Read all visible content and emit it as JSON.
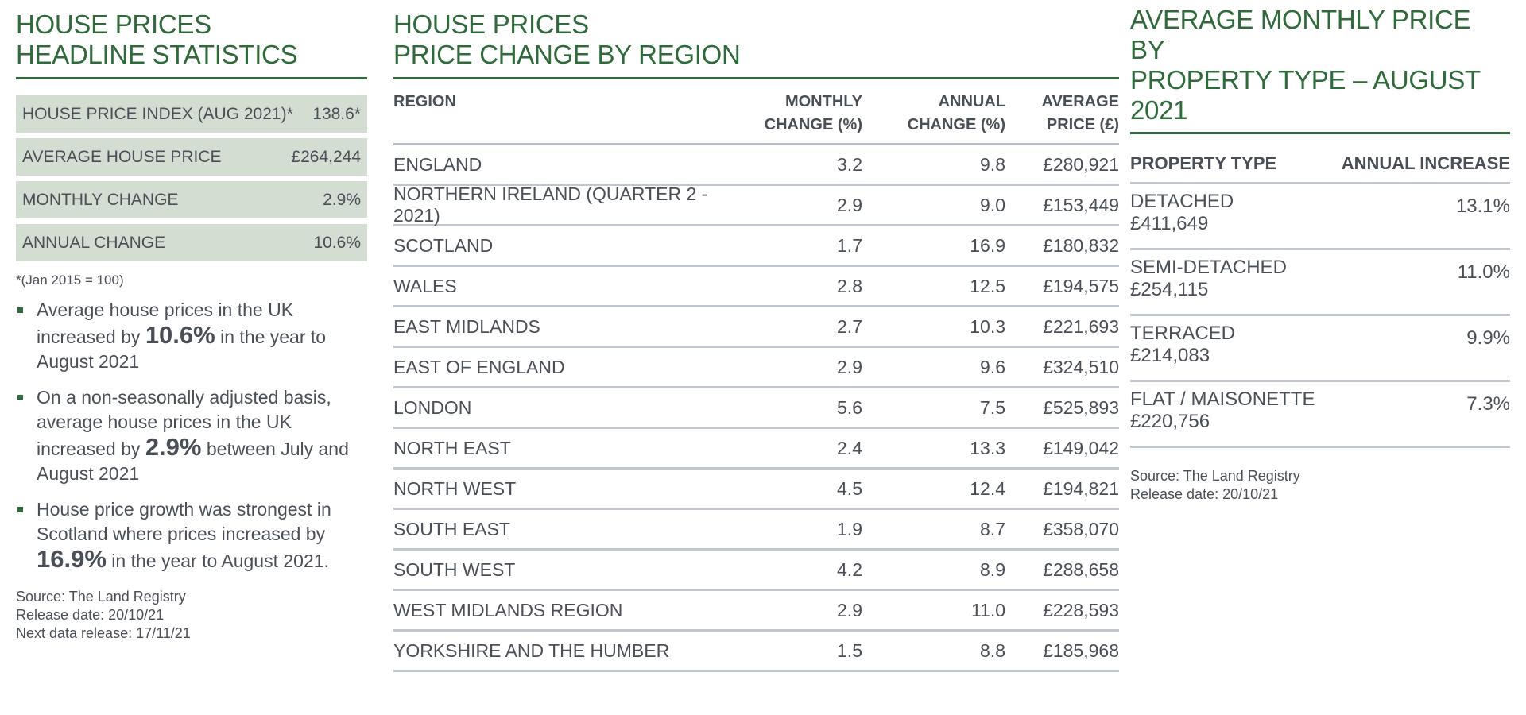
{
  "left": {
    "heading_line1": "HOUSE PRICES",
    "heading_line2": "HEADLINE STATISTICS",
    "stats": [
      {
        "label": "HOUSE PRICE INDEX (AUG 2021)*",
        "value": "138.6*"
      },
      {
        "label": "AVERAGE HOUSE PRICE",
        "value": "£264,244"
      },
      {
        "label": "MONTHLY CHANGE",
        "value": "2.9%"
      },
      {
        "label": "ANNUAL CHANGE",
        "value": "10.6%"
      }
    ],
    "footnote": "*(Jan 2015 = 100)",
    "bullets": [
      {
        "pre": "Average house prices in the UK increased by ",
        "bold": "10.6%",
        "post": " in the year to August 2021"
      },
      {
        "pre": "On a non-seasonally adjusted basis, average house prices in the UK increased by ",
        "bold": "2.9%",
        "post": " between July and August 2021"
      },
      {
        "pre": "House price growth was strongest in Scotland where prices increased by ",
        "bold": "16.9%",
        "post": " in the year to August 2021."
      }
    ],
    "source_line1": "Source: The Land Registry",
    "source_line2": "Release date: 20/10/21",
    "source_line3": "Next data release: 17/11/21"
  },
  "middle": {
    "heading_line1": "HOUSE PRICES",
    "heading_line2": "PRICE CHANGE BY REGION",
    "columns": {
      "region": "REGION",
      "monthly_l1": "MONTHLY",
      "monthly_l2": "CHANGE (%)",
      "annual_l1": "ANNUAL",
      "annual_l2": "CHANGE (%)",
      "price_l1": "AVERAGE",
      "price_l2": "PRICE (£)"
    },
    "rows": [
      {
        "region": "ENGLAND",
        "monthly": "3.2",
        "annual": "9.8",
        "price": "£280,921"
      },
      {
        "region": "NORTHERN IRELAND (QUARTER 2 - 2021)",
        "monthly": "2.9",
        "annual": "9.0",
        "price": "£153,449"
      },
      {
        "region": "SCOTLAND",
        "monthly": "1.7",
        "annual": "16.9",
        "price": "£180,832"
      },
      {
        "region": "WALES",
        "monthly": "2.8",
        "annual": "12.5",
        "price": "£194,575"
      },
      {
        "region": "EAST MIDLANDS",
        "monthly": "2.7",
        "annual": "10.3",
        "price": "£221,693"
      },
      {
        "region": "EAST OF ENGLAND",
        "monthly": "2.9",
        "annual": "9.6",
        "price": "£324,510"
      },
      {
        "region": "LONDON",
        "monthly": "5.6",
        "annual": "7.5",
        "price": "£525,893"
      },
      {
        "region": "NORTH EAST",
        "monthly": "2.4",
        "annual": "13.3",
        "price": "£149,042"
      },
      {
        "region": "NORTH WEST",
        "monthly": "4.5",
        "annual": "12.4",
        "price": "£194,821"
      },
      {
        "region": "SOUTH EAST",
        "monthly": "1.9",
        "annual": "8.7",
        "price": "£358,070"
      },
      {
        "region": "SOUTH WEST",
        "monthly": "4.2",
        "annual": "8.9",
        "price": "£288,658"
      },
      {
        "region": "WEST MIDLANDS REGION",
        "monthly": "2.9",
        "annual": "11.0",
        "price": "£228,593"
      },
      {
        "region": "YORKSHIRE AND THE HUMBER",
        "monthly": "1.5",
        "annual": "8.8",
        "price": "£185,968"
      }
    ]
  },
  "right": {
    "heading_line1": "AVERAGE MONTHLY PRICE BY",
    "heading_line2": "PROPERTY TYPE – AUGUST 2021",
    "columns": {
      "type": "PROPERTY TYPE",
      "increase": "ANNUAL INCREASE"
    },
    "rows": [
      {
        "type": "DETACHED",
        "price": "£411,649",
        "increase": "13.1%"
      },
      {
        "type": "SEMI-DETACHED",
        "price": "£254,115",
        "increase": "11.0%"
      },
      {
        "type": "TERRACED",
        "price": "£214,083",
        "increase": "9.9%"
      },
      {
        "type": "FLAT / MAISONETTE",
        "price": "£220,756",
        "increase": "7.3%"
      }
    ],
    "source_line1": "Source: The Land Registry",
    "source_line2": "Release date: 20/10/21"
  },
  "colors": {
    "heading_green": "#2f6b3a",
    "stat_box_bg": "#d4ddd2",
    "text_grey": "#4a4f57",
    "rule_grey": "#c2c7ce"
  }
}
